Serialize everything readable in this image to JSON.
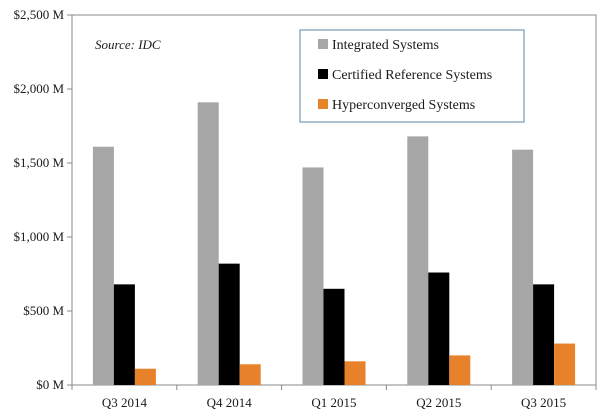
{
  "chart_data": {
    "type": "bar",
    "source_note": "Source: IDC",
    "categories": [
      "Q3 2014",
      "Q4 2014",
      "Q1 2015",
      "Q2 2015",
      "Q3 2015"
    ],
    "series": [
      {
        "name": "Integrated Systems",
        "color": "#a6a6a6",
        "values": [
          1610,
          1910,
          1470,
          1680,
          1590
        ]
      },
      {
        "name": "Certified Reference Systems",
        "color": "#000000",
        "values": [
          680,
          820,
          650,
          760,
          680
        ]
      },
      {
        "name": "Hyperconverged Systems",
        "color": "#e8822a",
        "values": [
          110,
          140,
          160,
          200,
          280
        ]
      }
    ],
    "yticks": [
      "$0 M",
      "$500 M",
      "$1,000 M",
      "$1,500 M",
      "$2,000 M",
      "$2,500 M"
    ],
    "ytick_values": [
      0,
      500,
      1000,
      1500,
      2000,
      2500
    ],
    "ylim": [
      0,
      2500
    ],
    "grid": false,
    "legend_position": "top-right",
    "title": "",
    "xlabel": "",
    "ylabel": ""
  }
}
